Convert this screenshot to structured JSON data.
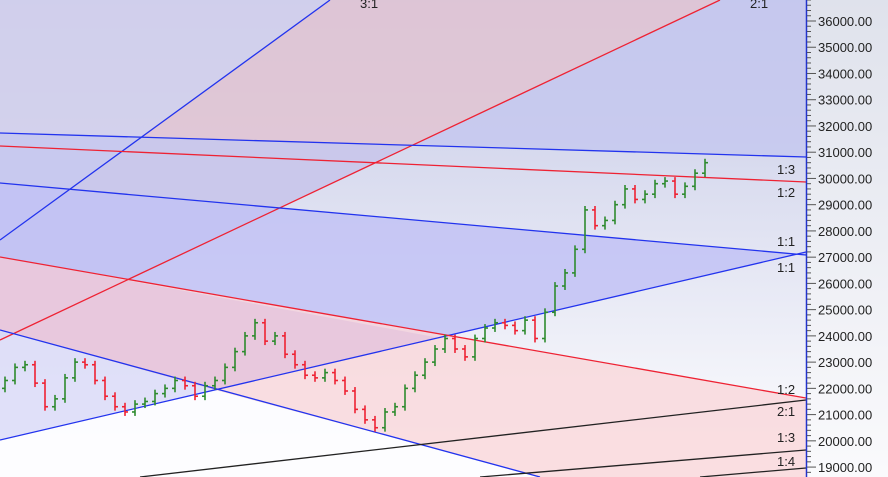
{
  "chart_data": {
    "type": "ohlc-bar",
    "title": "",
    "ylim": [
      18600,
      36800
    ],
    "y_ticks": [
      "19000.00",
      "20000.00",
      "21000.00",
      "22000.00",
      "23000.00",
      "24000.00",
      "25000.00",
      "26000.00",
      "27000.00",
      "28000.00",
      "29000.00",
      "30000.00",
      "31000.00",
      "32000.00",
      "33000.00",
      "34000.00",
      "35000.00",
      "36000.00"
    ],
    "y_tick_values": [
      19000,
      20000,
      21000,
      22000,
      23000,
      24000,
      25000,
      26000,
      27000,
      28000,
      29000,
      30000,
      31000,
      32000,
      33000,
      34000,
      35000,
      36000
    ],
    "first_open": 22000,
    "closes": [
      22300,
      22800,
      22900,
      22200,
      21300,
      21600,
      22400,
      23000,
      22900,
      22300,
      21700,
      21300,
      21100,
      21400,
      21500,
      21800,
      22000,
      22300,
      22100,
      21700,
      22100,
      22300,
      22800,
      23400,
      24000,
      24500,
      23800,
      24000,
      23300,
      22900,
      22500,
      22400,
      22600,
      22300,
      21900,
      21200,
      20800,
      20500,
      21100,
      21300,
      22000,
      22500,
      23000,
      23500,
      23900,
      23500,
      23200,
      23900,
      24300,
      24500,
      24400,
      24200,
      24600,
      23900,
      24900,
      25900,
      26400,
      27300,
      28800,
      28200,
      28400,
      29000,
      29600,
      29200,
      29400,
      29800,
      29900,
      29400,
      29700,
      30200,
      30600
    ],
    "colors": {
      "up": "#2e8b2e",
      "down": "#ee2233",
      "fan_blue": "#2233ee",
      "fan_red": "#ee2233",
      "fan_black": "#222222",
      "axis": "#2233cc"
    },
    "fan_labels_top": [
      "3:1",
      "2:1"
    ],
    "fan_labels_right": [
      "1:3",
      "1:2",
      "1:1",
      "1:1",
      "1:2",
      "2:1",
      "1:3",
      "1:4"
    ],
    "grid": false
  }
}
